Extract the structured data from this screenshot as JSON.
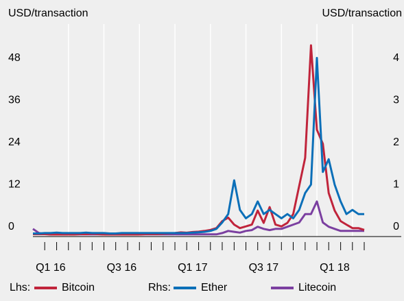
{
  "chart_data": {
    "type": "line",
    "ylabel": "USD/transaction",
    "y2label": "USD/transaction",
    "lhs_label": "Lhs:",
    "rhs_label": "Rhs:",
    "xlim": [
      2016,
      2018.42
    ],
    "xticks": [
      {
        "value": 2016.125,
        "label": "Q1 16"
      },
      {
        "value": 2016.625,
        "label": "Q3 16"
      },
      {
        "value": 2017.125,
        "label": "Q1 17"
      },
      {
        "value": 2017.625,
        "label": "Q3 17"
      },
      {
        "value": 2018.125,
        "label": "Q1 18"
      }
    ],
    "xgrid": [
      2016.25,
      2016.5,
      2016.75,
      2017,
      2017.25,
      2017.5,
      2017.75,
      2018,
      2018.25
    ],
    "xminorticks": [
      2016.083,
      2016.167,
      2016.25,
      2016.333,
      2016.417,
      2016.5,
      2016.583,
      2016.667,
      2016.75,
      2016.833,
      2016.917,
      2017,
      2017.083,
      2017.167,
      2017.25,
      2017.333,
      2017.417,
      2017.5,
      2017.583,
      2017.667,
      2017.75,
      2017.833,
      2017.917,
      2018,
      2018.083,
      2018.167,
      2018.25,
      2018.333
    ],
    "ylim": [
      0,
      58.5
    ],
    "yticks": [
      0,
      12,
      24,
      36,
      48
    ],
    "y2lim": [
      0,
      4.875
    ],
    "y2ticks": [
      0,
      1,
      2,
      3,
      4
    ],
    "x": [
      2016,
      2016.042,
      2016.083,
      2016.125,
      2016.167,
      2016.208,
      2016.25,
      2016.292,
      2016.333,
      2016.375,
      2016.417,
      2016.458,
      2016.5,
      2016.542,
      2016.583,
      2016.625,
      2016.667,
      2016.708,
      2016.75,
      2016.792,
      2016.833,
      2016.875,
      2016.917,
      2016.958,
      2017,
      2017.042,
      2017.083,
      2017.125,
      2017.167,
      2017.208,
      2017.25,
      2017.292,
      2017.333,
      2017.375,
      2017.417,
      2017.458,
      2017.5,
      2017.542,
      2017.583,
      2017.625,
      2017.667,
      2017.708,
      2017.75,
      2017.792,
      2017.833,
      2017.875,
      2017.917,
      2017.958,
      2018,
      2018.042,
      2018.083,
      2018.125,
      2018.167,
      2018.208,
      2018.25,
      2018.292,
      2018.333
    ],
    "series": [
      {
        "name": "Bitcoin",
        "color": "#c0243b",
        "axis": "y",
        "values": [
          0.3,
          0.3,
          0.3,
          0.2,
          0.2,
          0.2,
          0.2,
          0.2,
          0.3,
          0.3,
          0.4,
          0.3,
          0.2,
          0.2,
          0.2,
          0.2,
          0.2,
          0.2,
          0.2,
          0.3,
          0.3,
          0.3,
          0.4,
          0.5,
          0.6,
          0.8,
          0.7,
          0.9,
          1.0,
          1.2,
          1.5,
          2.0,
          4.0,
          5.0,
          3.0,
          2.0,
          2.5,
          3.0,
          7.0,
          3.5,
          8.0,
          3.0,
          2.5,
          3.5,
          6.0,
          14.0,
          22.0,
          54.0,
          30,
          26,
          12,
          7,
          4,
          3,
          2,
          2,
          1.5
        ]
      },
      {
        "name": "Ether",
        "color": "#0b6fb8",
        "axis": "y2",
        "values": [
          0.04,
          0.04,
          0.05,
          0.05,
          0.06,
          0.05,
          0.05,
          0.05,
          0.05,
          0.06,
          0.05,
          0.05,
          0.05,
          0.04,
          0.04,
          0.05,
          0.05,
          0.05,
          0.05,
          0.05,
          0.05,
          0.05,
          0.05,
          0.05,
          0.05,
          0.05,
          0.05,
          0.06,
          0.07,
          0.08,
          0.1,
          0.15,
          0.3,
          0.5,
          1.3,
          0.6,
          0.4,
          0.5,
          0.8,
          0.5,
          0.6,
          0.5,
          0.4,
          0.5,
          0.4,
          0.6,
          1.0,
          1.2,
          4.2,
          1.5,
          1.8,
          1.2,
          0.8,
          0.5,
          0.6,
          0.5,
          0.5
        ]
      },
      {
        "name": "Litecoin",
        "color": "#7b3fa0",
        "axis": "y2",
        "values": [
          0.15,
          0.05,
          0.03,
          0.02,
          0.02,
          0.02,
          0.02,
          0.02,
          0.02,
          0.02,
          0.02,
          0.02,
          0.02,
          0.02,
          0.02,
          0.02,
          0.02,
          0.02,
          0.02,
          0.02,
          0.02,
          0.02,
          0.02,
          0.02,
          0.02,
          0.02,
          0.02,
          0.02,
          0.02,
          0.02,
          0.02,
          0.02,
          0.05,
          0.1,
          0.08,
          0.06,
          0.1,
          0.12,
          0.2,
          0.15,
          0.12,
          0.15,
          0.15,
          0.2,
          0.25,
          0.3,
          0.5,
          0.5,
          0.8,
          0.3,
          0.2,
          0.15,
          0.1,
          0.1,
          0.1,
          0.1,
          0.1
        ]
      }
    ]
  }
}
